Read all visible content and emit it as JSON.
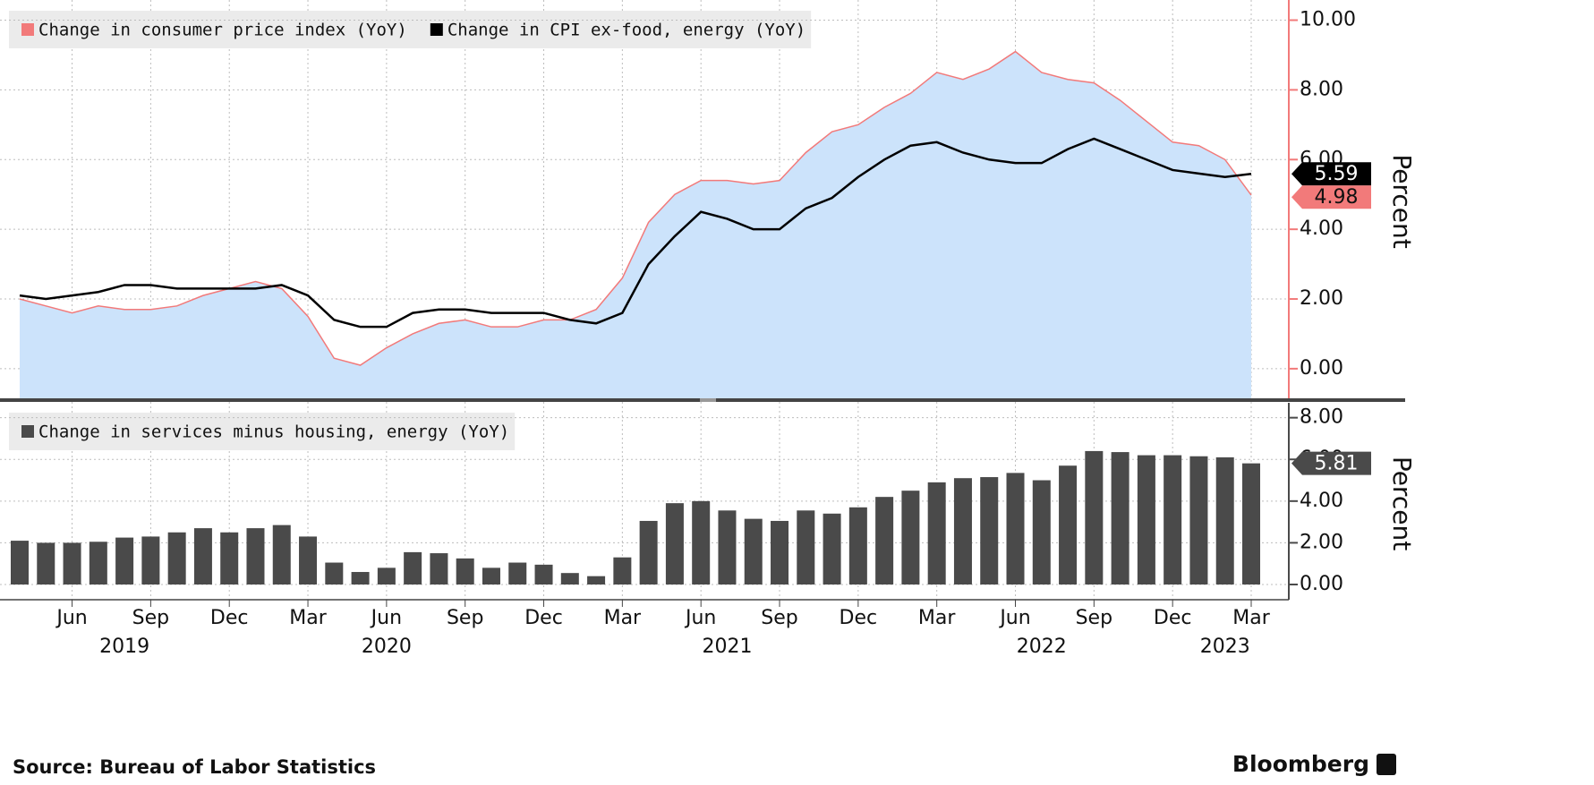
{
  "chart_data": [
    {
      "type": "area",
      "x": [
        "2019-04",
        "2019-05",
        "2019-06",
        "2019-07",
        "2019-08",
        "2019-09",
        "2019-10",
        "2019-11",
        "2019-12",
        "2020-01",
        "2020-02",
        "2020-03",
        "2020-04",
        "2020-05",
        "2020-06",
        "2020-07",
        "2020-08",
        "2020-09",
        "2020-10",
        "2020-11",
        "2020-12",
        "2021-01",
        "2021-02",
        "2021-03",
        "2021-04",
        "2021-05",
        "2021-06",
        "2021-07",
        "2021-08",
        "2021-09",
        "2021-10",
        "2021-11",
        "2021-12",
        "2022-01",
        "2022-02",
        "2022-03",
        "2022-04",
        "2022-05",
        "2022-06",
        "2022-07",
        "2022-08",
        "2022-09",
        "2022-10",
        "2022-11",
        "2022-12",
        "2023-01",
        "2023-02",
        "2023-03"
      ],
      "series": [
        {
          "name": "Change in consumer price index (YoY)",
          "color": "#f27a7a",
          "fill": "#cce3fb",
          "values": [
            2.0,
            1.8,
            1.6,
            1.8,
            1.7,
            1.7,
            1.8,
            2.1,
            2.3,
            2.5,
            2.3,
            1.5,
            0.3,
            0.1,
            0.6,
            1.0,
            1.3,
            1.4,
            1.2,
            1.2,
            1.4,
            1.4,
            1.7,
            2.6,
            4.2,
            5.0,
            5.4,
            5.4,
            5.3,
            5.4,
            6.2,
            6.8,
            7.0,
            7.5,
            7.9,
            8.5,
            8.3,
            8.6,
            9.1,
            8.5,
            8.3,
            8.2,
            7.7,
            7.1,
            6.5,
            6.4,
            6.0,
            4.98
          ]
        },
        {
          "name": "Change in CPI ex-food, energy (YoY)",
          "color": "#000000",
          "values": [
            2.1,
            2.0,
            2.1,
            2.2,
            2.4,
            2.4,
            2.3,
            2.3,
            2.3,
            2.3,
            2.4,
            2.1,
            1.4,
            1.2,
            1.2,
            1.6,
            1.7,
            1.7,
            1.6,
            1.6,
            1.6,
            1.4,
            1.3,
            1.6,
            3.0,
            3.8,
            4.5,
            4.3,
            4.0,
            4.0,
            4.6,
            4.9,
            5.5,
            6.0,
            6.4,
            6.5,
            6.2,
            6.0,
            5.9,
            5.9,
            6.3,
            6.6,
            6.3,
            6.0,
            5.7,
            5.6,
            5.5,
            5.59
          ]
        }
      ],
      "ylim": [
        -0.85,
        10.45
      ],
      "yticks": [
        {
          "value": 0,
          "label": "0.00"
        },
        {
          "value": 2,
          "label": "2.00"
        },
        {
          "value": 4,
          "label": "4.00"
        },
        {
          "value": 6,
          "label": "6.00"
        },
        {
          "value": 8,
          "label": "8.00"
        },
        {
          "value": 10,
          "label": "10.00"
        }
      ],
      "axis_color": "#f27a7a",
      "y_label": "Percent",
      "grid": true
    },
    {
      "type": "bar",
      "x": [
        "2019-04",
        "2019-05",
        "2019-06",
        "2019-07",
        "2019-08",
        "2019-09",
        "2019-10",
        "2019-11",
        "2019-12",
        "2020-01",
        "2020-02",
        "2020-03",
        "2020-04",
        "2020-05",
        "2020-06",
        "2020-07",
        "2020-08",
        "2020-09",
        "2020-10",
        "2020-11",
        "2020-12",
        "2021-01",
        "2021-02",
        "2021-03",
        "2021-04",
        "2021-05",
        "2021-06",
        "2021-07",
        "2021-08",
        "2021-09",
        "2021-10",
        "2021-11",
        "2021-12",
        "2022-01",
        "2022-02",
        "2022-03",
        "2022-04",
        "2022-05",
        "2022-06",
        "2022-07",
        "2022-08",
        "2022-09",
        "2022-10",
        "2022-11",
        "2022-12",
        "2023-01",
        "2023-02",
        "2023-03"
      ],
      "series": [
        {
          "name": "Change in services minus housing, energy (YoY)",
          "color": "#4a4a4a",
          "values": [
            2.1,
            2.0,
            2.0,
            2.05,
            2.25,
            2.3,
            2.5,
            2.7,
            2.5,
            2.7,
            2.85,
            2.3,
            1.05,
            0.6,
            0.8,
            1.55,
            1.5,
            1.25,
            0.8,
            1.05,
            0.95,
            0.55,
            0.4,
            1.3,
            3.05,
            3.9,
            4.0,
            3.55,
            3.15,
            3.05,
            3.55,
            3.4,
            3.7,
            4.2,
            4.5,
            4.9,
            5.1,
            5.15,
            5.35,
            5.0,
            5.7,
            6.4,
            6.35,
            6.2,
            6.2,
            6.15,
            6.1,
            5.81
          ]
        }
      ],
      "ylim": [
        -0.73,
        8.5
      ],
      "yticks": [
        {
          "value": 0,
          "label": "0.00"
        },
        {
          "value": 2,
          "label": "2.00"
        },
        {
          "value": 4,
          "label": "4.00"
        },
        {
          "value": 6,
          "label": "6.00"
        },
        {
          "value": 8,
          "label": "8.00"
        }
      ],
      "axis_color": "#4a4a4a",
      "xticks": [
        {
          "value": "2019-06",
          "label": "Jun"
        },
        {
          "value": "2019-09",
          "label": "Sep"
        },
        {
          "value": "2019-12",
          "label": "Dec"
        },
        {
          "value": "2020-03",
          "label": "Mar"
        },
        {
          "value": "2020-06",
          "label": "Jun"
        },
        {
          "value": "2020-09",
          "label": "Sep"
        },
        {
          "value": "2020-12",
          "label": "Dec"
        },
        {
          "value": "2021-03",
          "label": "Mar"
        },
        {
          "value": "2021-06",
          "label": "Jun"
        },
        {
          "value": "2021-09",
          "label": "Sep"
        },
        {
          "value": "2021-12",
          "label": "Dec"
        },
        {
          "value": "2022-03",
          "label": "Mar"
        },
        {
          "value": "2022-06",
          "label": "Jun"
        },
        {
          "value": "2022-09",
          "label": "Sep"
        },
        {
          "value": "2022-12",
          "label": "Dec"
        },
        {
          "value": "2023-03",
          "label": "Mar"
        }
      ],
      "year_labels": [
        {
          "value": "2019-08",
          "label": "2019"
        },
        {
          "value": "2020-06",
          "label": "2020"
        },
        {
          "value": "2021-07",
          "label": "2021"
        },
        {
          "value": "2022-07",
          "label": "2022"
        },
        {
          "value": "2023-02",
          "label": "2023"
        }
      ],
      "y_label": "Percent",
      "grid": true
    }
  ],
  "source": "Source: Bureau of Labor Statistics",
  "brand": "Bloomberg"
}
